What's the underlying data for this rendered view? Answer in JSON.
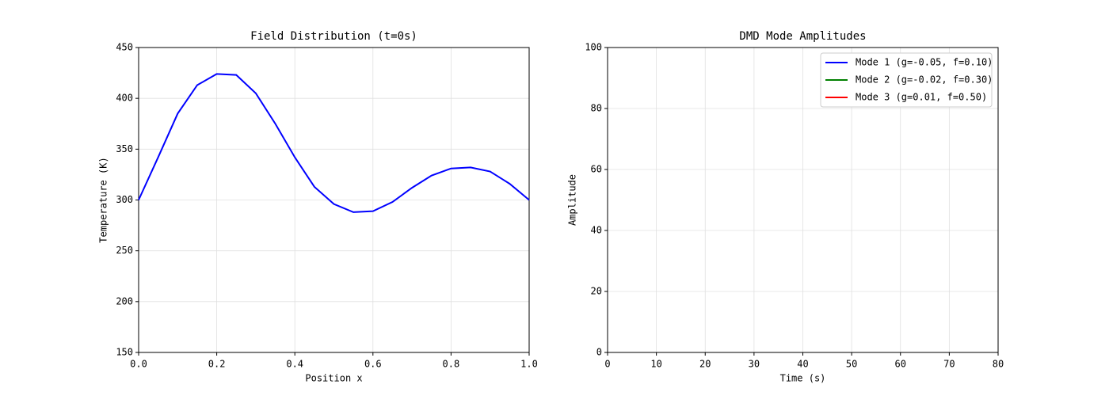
{
  "chart_data": [
    {
      "type": "line",
      "title": "Field Distribution (t=0s)",
      "xlabel": "Position x",
      "ylabel": "Temperature (K)",
      "x": [
        0,
        0.05,
        0.1,
        0.15,
        0.2,
        0.25,
        0.3,
        0.35,
        0.4,
        0.45,
        0.5,
        0.55,
        0.6,
        0.65,
        0.7,
        0.75,
        0.8,
        0.85,
        0.9,
        0.95,
        1.0
      ],
      "values": [
        300,
        342,
        385,
        413,
        424,
        423,
        405,
        375,
        342,
        313,
        296,
        288,
        289,
        298,
        312,
        324,
        331,
        332,
        328,
        316,
        300
      ],
      "color": "#0000ff",
      "xlim": [
        0,
        1
      ],
      "xticks": [
        {
          "value": 0,
          "label": "0.0"
        },
        0.2,
        0.4,
        0.6,
        0.8,
        {
          "value": 1,
          "label": "1.0"
        }
      ],
      "ylim": [
        150,
        450
      ],
      "yticks": [
        150,
        200,
        250,
        300,
        350,
        400,
        450
      ],
      "grid": true
    },
    {
      "type": "line",
      "title": "DMD Mode Amplitudes",
      "xlabel": "Time (s)",
      "ylabel": "Amplitude",
      "x": [],
      "series": [
        {
          "name": "Mode 1 (g=-0.05, f=0.10)",
          "color": "#0000ff",
          "values": []
        },
        {
          "name": "Mode 2 (g=-0.02, f=0.30)",
          "color": "#008000",
          "values": []
        },
        {
          "name": "Mode 3 (g=0.01, f=0.50)",
          "color": "#ff0000",
          "values": []
        }
      ],
      "xlim": [
        0,
        80
      ],
      "xticks": [
        0,
        10,
        20,
        30,
        40,
        50,
        60,
        70,
        80
      ],
      "ylim": [
        0,
        100
      ],
      "yticks": [
        0,
        20,
        40,
        60,
        80,
        100
      ],
      "grid": true,
      "legend": "upper right"
    }
  ]
}
